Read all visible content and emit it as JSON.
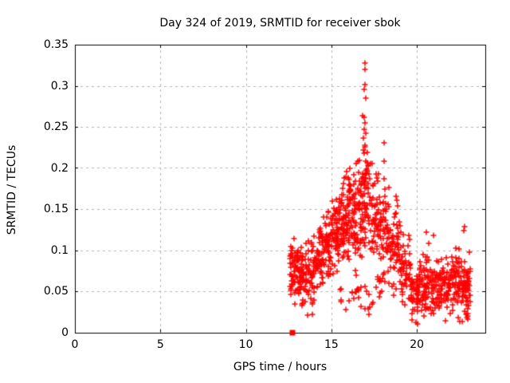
{
  "figure": {
    "background": "#ffffff",
    "text_color": "#000000"
  },
  "chart_data": {
    "type": "scatter",
    "title": "Day 324 of 2019, SRMTID for receiver sbok",
    "xlabel": "GPS time / hours",
    "ylabel": "SRMTID / TECUs",
    "xlim": [
      0,
      24
    ],
    "ylim": [
      0,
      0.35
    ],
    "xticks": {
      "values": [
        0,
        5,
        10,
        15,
        20
      ],
      "labels": [
        "0",
        "5",
        "10",
        "15",
        "20"
      ]
    },
    "yticks": {
      "values": [
        0,
        0.05,
        0.1,
        0.15,
        0.2,
        0.25,
        0.3,
        0.35
      ],
      "labels": [
        "0",
        "0.05",
        "0.1",
        "0.15",
        "0.2",
        "0.25",
        "0.3",
        "0.35"
      ]
    },
    "grid": {
      "show": true,
      "color": "#b4b4b4",
      "dash": [
        3,
        4
      ]
    },
    "axis_color": "#000000",
    "legend": "none",
    "seed": 324,
    "cluster_fields": [
      "x_start",
      "x_end",
      "count",
      "y_center",
      "y_sigma",
      "y_min",
      "y_max"
    ],
    "series": [
      {
        "name": "srmtid-plus-markers",
        "marker": "plus",
        "color": "#ff0000",
        "size": 7,
        "clusters": [
          [
            12.58,
            13.0,
            55,
            0.078,
            0.018,
            0.034,
            0.116
          ],
          [
            13.0,
            13.5,
            60,
            0.068,
            0.018,
            0.022,
            0.104
          ],
          [
            13.5,
            14.0,
            52,
            0.072,
            0.022,
            0.02,
            0.118
          ],
          [
            14.0,
            14.5,
            55,
            0.09,
            0.02,
            0.04,
            0.128
          ],
          [
            14.5,
            15.0,
            55,
            0.105,
            0.024,
            0.046,
            0.152
          ],
          [
            15.0,
            15.5,
            62,
            0.124,
            0.022,
            0.06,
            0.172
          ],
          [
            15.5,
            16.0,
            68,
            0.134,
            0.024,
            0.052,
            0.193
          ],
          [
            16.0,
            16.5,
            68,
            0.14,
            0.027,
            0.042,
            0.208
          ],
          [
            16.5,
            16.82,
            40,
            0.15,
            0.028,
            0.07,
            0.218
          ],
          [
            16.82,
            17.15,
            52,
            0.175,
            0.048,
            0.09,
            0.315
          ],
          [
            17.15,
            17.8,
            60,
            0.147,
            0.028,
            0.072,
            0.21
          ],
          [
            17.8,
            18.4,
            58,
            0.13,
            0.029,
            0.06,
            0.2
          ],
          [
            18.4,
            19.0,
            58,
            0.108,
            0.028,
            0.048,
            0.172
          ],
          [
            19.0,
            19.6,
            48,
            0.075,
            0.024,
            0.03,
            0.128
          ],
          [
            19.6,
            20.2,
            58,
            0.05,
            0.017,
            0.012,
            0.098
          ],
          [
            20.2,
            20.8,
            62,
            0.055,
            0.021,
            0.016,
            0.122
          ],
          [
            20.8,
            21.4,
            62,
            0.054,
            0.019,
            0.016,
            0.108
          ],
          [
            21.4,
            22.0,
            58,
            0.059,
            0.019,
            0.022,
            0.112
          ],
          [
            22.0,
            22.6,
            58,
            0.06,
            0.021,
            0.016,
            0.118
          ],
          [
            22.6,
            23.12,
            68,
            0.054,
            0.024,
            0.012,
            0.128
          ],
          [
            15.5,
            17.5,
            28,
            0.047,
            0.014,
            0.022,
            0.075
          ],
          [
            17.6,
            19.2,
            15,
            0.055,
            0.012,
            0.035,
            0.082
          ]
        ],
        "extra_points": [
          [
            16.97,
            0.328
          ],
          [
            16.97,
            0.32
          ],
          [
            16.95,
            0.301
          ],
          [
            16.93,
            0.296
          ],
          [
            16.99,
            0.285
          ],
          [
            16.9,
            0.262
          ],
          [
            16.96,
            0.255
          ],
          [
            16.92,
            0.247
          ],
          [
            17.0,
            0.242
          ],
          [
            16.88,
            0.236
          ],
          [
            16.94,
            0.228
          ],
          [
            18.1,
            0.231
          ],
          [
            18.06,
            0.208
          ],
          [
            17.4,
            0.205
          ],
          [
            16.45,
            0.205
          ],
          [
            15.9,
            0.196
          ],
          [
            19.22,
            0.119
          ],
          [
            19.95,
            0.012
          ],
          [
            20.02,
            0.01
          ],
          [
            21.68,
            0.014
          ],
          [
            22.52,
            0.013
          ],
          [
            22.8,
            0.129
          ],
          [
            22.74,
            0.124
          ],
          [
            20.55,
            0.122
          ],
          [
            20.95,
            0.118
          ],
          [
            13.62,
            0.021
          ],
          [
            13.88,
            0.022
          ],
          [
            12.62,
            0.096
          ],
          [
            14.35,
            0.127
          ],
          [
            14.3,
            0.122
          ]
        ]
      },
      {
        "name": "flag-square-marker",
        "marker": "square",
        "color": "#ff0000",
        "size": 7,
        "points": [
          [
            12.72,
            0.0
          ]
        ]
      }
    ]
  }
}
